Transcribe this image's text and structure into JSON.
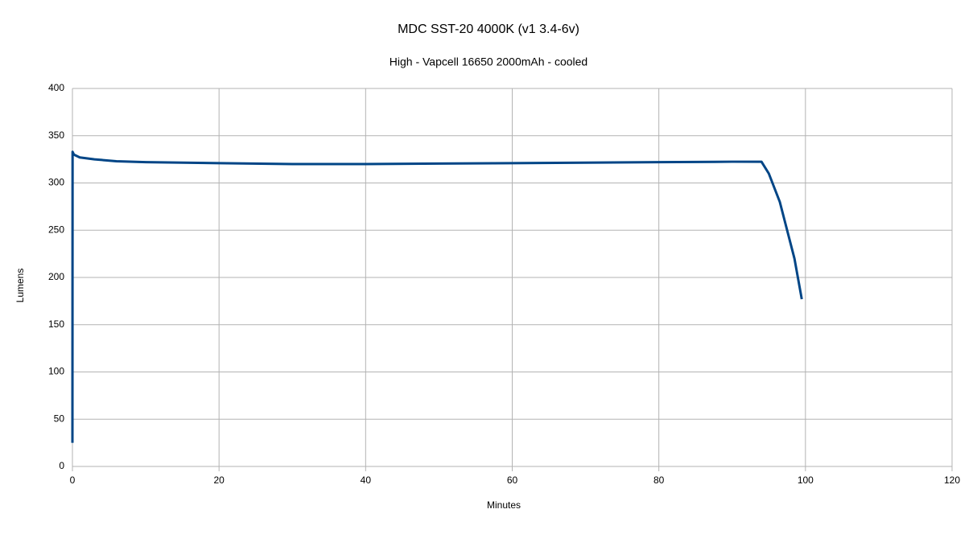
{
  "chart_data": {
    "type": "line",
    "title": "MDC SST-20 4000K (v1 3.4-6v)",
    "subtitle": "High - Vapcell 16650 2000mAh - cooled",
    "x_label": "Minutes",
    "y_label": "Lumens",
    "x": [
      0,
      0.02,
      0.2,
      1,
      3,
      6,
      10,
      20,
      30,
      40,
      50,
      60,
      70,
      80,
      90,
      94,
      95,
      96.5,
      97.5,
      98.5,
      99.5
    ],
    "series": [
      {
        "name": "Lumens",
        "color": "#004586",
        "values": [
          25,
          333,
          330,
          327,
          325,
          323,
          322,
          321,
          320,
          320,
          320.5,
          321,
          321.5,
          322,
          322.5,
          322.5,
          310,
          280,
          250,
          220,
          177
        ]
      }
    ],
    "xlim": [
      0,
      120
    ],
    "xticks": [
      0,
      20,
      40,
      60,
      80,
      100,
      120
    ],
    "ylim": [
      0,
      400
    ],
    "yticks": [
      0,
      50,
      100,
      150,
      200,
      250,
      300,
      350,
      400
    ],
    "grid": true
  }
}
